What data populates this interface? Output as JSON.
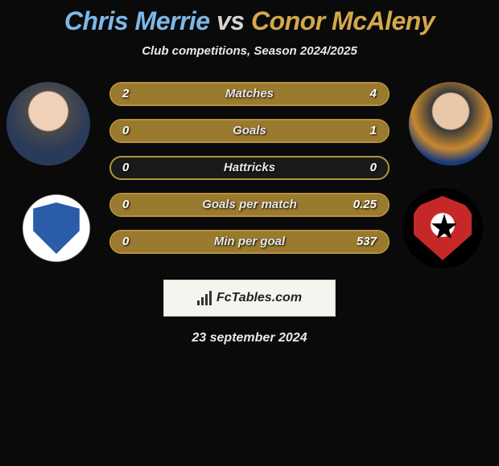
{
  "title": {
    "player1": "Chris Merrie",
    "vs": "vs",
    "player2": "Conor McAleny"
  },
  "subtitle": "Club competitions, Season 2024/2025",
  "colors": {
    "player1_accent": "#7db8e8",
    "player2_accent": "#d4a84a",
    "bar_border": "#b8923a",
    "bar_fill": "#9a7a2e",
    "background": "#0a0a0a"
  },
  "stats": [
    {
      "label": "Matches",
      "v1": "2",
      "v2": "4",
      "p1_pct": 33,
      "p2_pct": 67
    },
    {
      "label": "Goals",
      "v1": "0",
      "v2": "1",
      "p1_pct": 0,
      "p2_pct": 100
    },
    {
      "label": "Hattricks",
      "v1": "0",
      "v2": "0",
      "p1_pct": 0,
      "p2_pct": 0
    },
    {
      "label": "Goals per match",
      "v1": "0",
      "v2": "0.25",
      "p1_pct": 0,
      "p2_pct": 100
    },
    {
      "label": "Min per goal",
      "v1": "0",
      "v2": "537",
      "p1_pct": 0,
      "p2_pct": 100
    }
  ],
  "branding": {
    "text": "FcTables.com"
  },
  "date": "23 september 2024"
}
